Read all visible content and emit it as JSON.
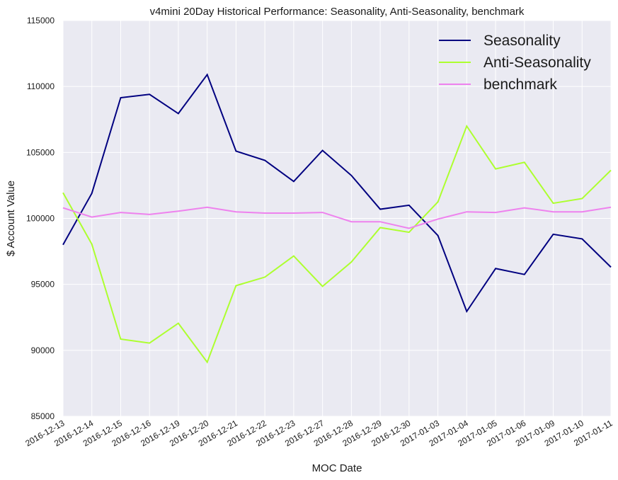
{
  "chart_data": {
    "type": "line",
    "title": "v4mini 20Day Historical Performance: Seasonality, Anti-Seasonality, benchmark",
    "xlabel": "MOC Date",
    "ylabel": "$ Account Value",
    "ylim": [
      85000,
      115000
    ],
    "yticks": [
      "85000",
      "90000",
      "95000",
      "100000",
      "105000",
      "110000",
      "115000"
    ],
    "grid": true,
    "legend_position": "top-right",
    "background_color": "#eaeaf2",
    "grid_color": "#ffffff",
    "categories": [
      "2016-12-13",
      "2016-12-14",
      "2016-12-15",
      "2016-12-16",
      "2016-12-19",
      "2016-12-20",
      "2016-12-21",
      "2016-12-22",
      "2016-12-23",
      "2016-12-27",
      "2016-12-28",
      "2016-12-29",
      "2016-12-30",
      "2017-01-03",
      "2017-01-04",
      "2017-01-05",
      "2017-01-06",
      "2017-01-09",
      "2017-01-10",
      "2017-01-11"
    ],
    "series": [
      {
        "name": "Seasonality",
        "color": "#000080",
        "values": [
          98000,
          101900,
          109150,
          109400,
          107950,
          110900,
          105100,
          104400,
          102800,
          105150,
          103250,
          100700,
          101000,
          98700,
          92950,
          96200,
          95750,
          98800,
          98450,
          96300
        ]
      },
      {
        "name": "Anti-Seasonality",
        "color": "#adff2f",
        "values": [
          101950,
          98050,
          90850,
          90550,
          92050,
          89100,
          94900,
          95550,
          97150,
          94850,
          96700,
          99300,
          98950,
          101250,
          107000,
          103750,
          104250,
          101150,
          101500,
          103650
        ]
      },
      {
        "name": "benchmark",
        "color": "#ee82ee",
        "values": [
          100800,
          100100,
          100450,
          100300,
          100550,
          100850,
          100500,
          100400,
          100400,
          100450,
          99750,
          99750,
          99250,
          99950,
          100500,
          100450,
          100800,
          100500,
          100500,
          100850
        ]
      }
    ]
  }
}
